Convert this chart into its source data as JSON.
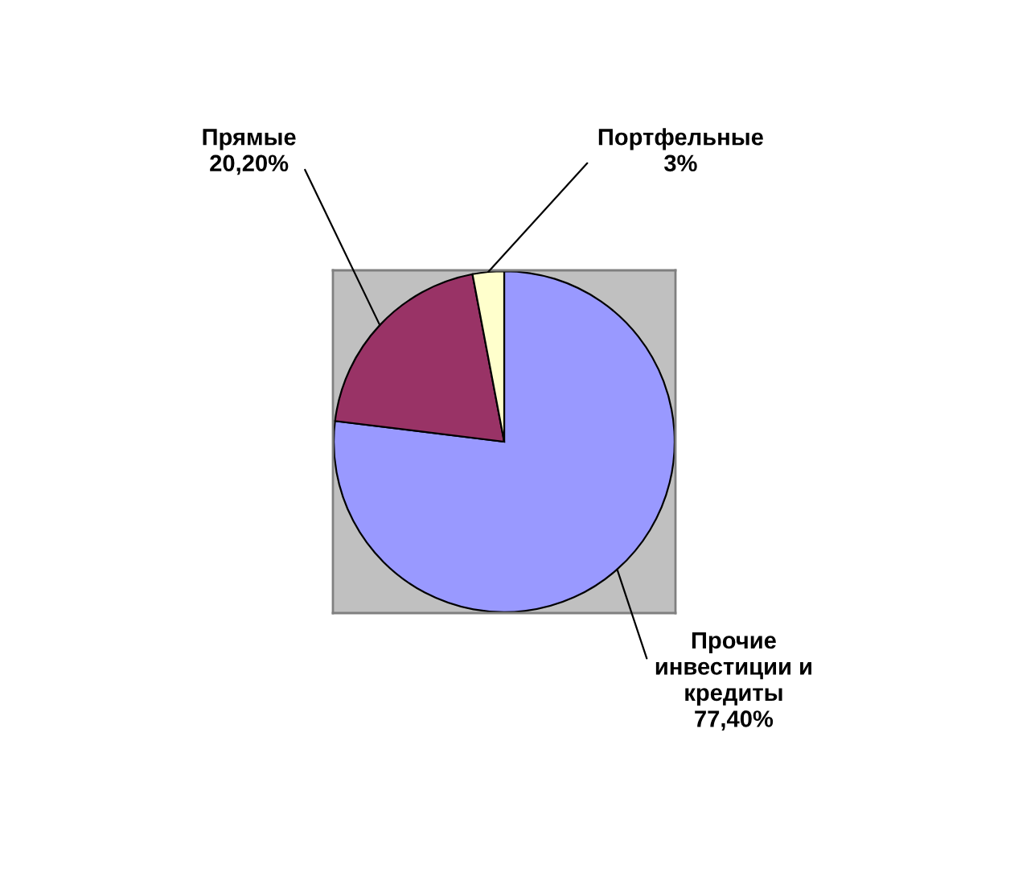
{
  "chart_data": {
    "type": "pie",
    "categories": [
      "Прочие инвестиции и кредиты",
      "Прямые",
      "Портфельные"
    ],
    "values": [
      77.4,
      20.2,
      3
    ],
    "colors": [
      "#9999ff",
      "#993366",
      "#ffffcc"
    ],
    "value_labels": [
      "77,40%",
      "20,20%",
      "3%"
    ]
  }
}
